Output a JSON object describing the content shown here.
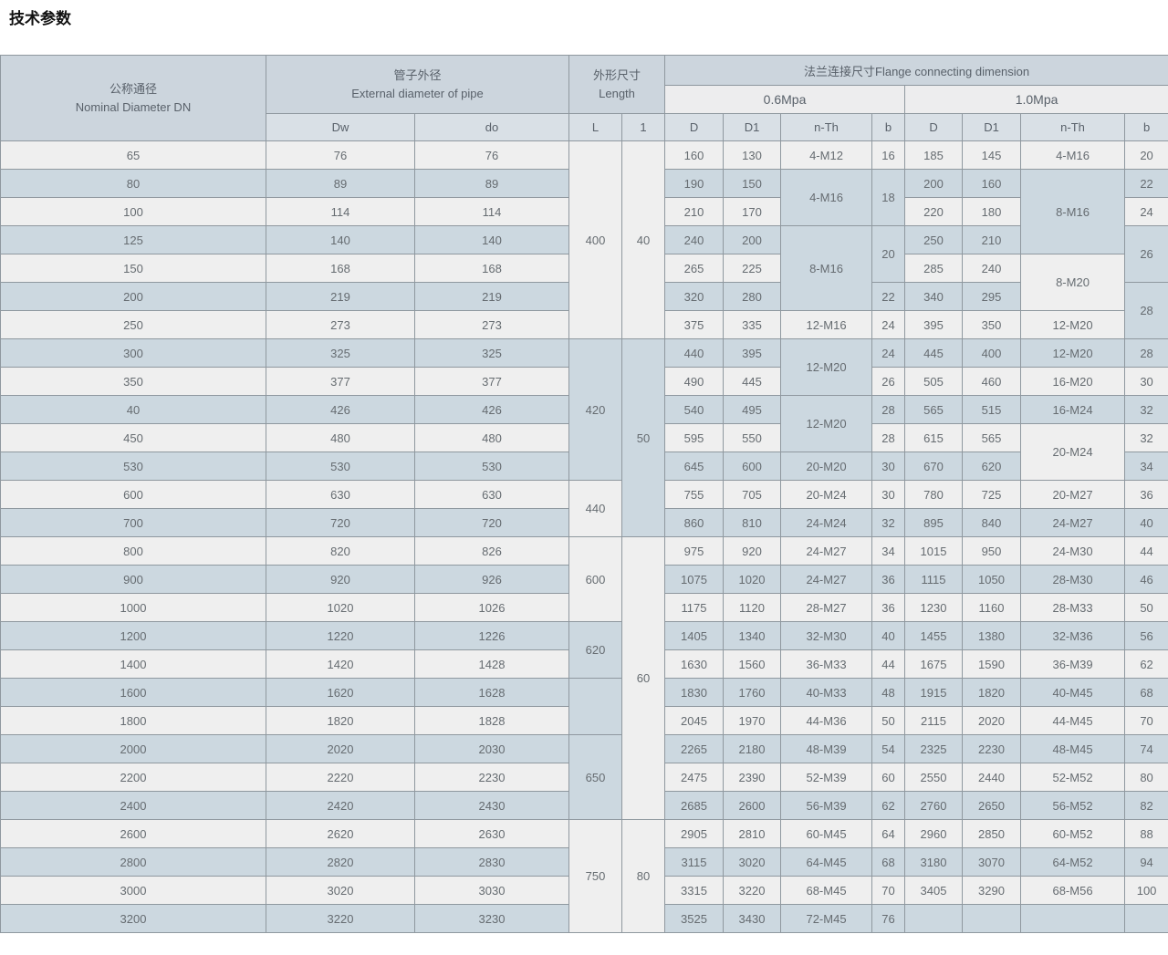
{
  "page_title": "技术参数",
  "colors": {
    "title": "#111111",
    "header_bg": "#ccd5dd",
    "mpa_row_bg": "#ededee",
    "subheader_bg": "#d9e0e6",
    "row_light": "#efefef",
    "row_dark": "#ccd8e0",
    "border": "#8f989f",
    "header_text": "#59616a",
    "cell_text": "#666c71"
  },
  "table": {
    "header": {
      "dn_zh": "公称通径",
      "dn_en": "Nominal Diameter DN",
      "pipe_zh": "管子外径",
      "pipe_en": "External diameter of pipe",
      "length_zh": "外形尺寸",
      "length_en": "Length",
      "flange": "法兰连接尺寸Flange connecting dimension",
      "mpa06": "0.6Mpa",
      "mpa10": "1.0Mpa",
      "sub": [
        "Dw",
        "do",
        "L",
        "1",
        "D",
        "D1",
        "n-Th",
        "b",
        "D",
        "D1",
        "n-Th",
        "b"
      ]
    },
    "columns": [
      "dn",
      "dw",
      "do",
      "L",
      "l",
      "D-06",
      "D1-06",
      "nTh-06",
      "b-06",
      "D-10",
      "D1-10",
      "nTh-10",
      "b-10"
    ],
    "rows": [
      {
        "cells": [
          {
            "v": "65"
          },
          {
            "v": "76"
          },
          {
            "v": "76"
          },
          {
            "v": "400",
            "rs": 7
          },
          {
            "v": "40",
            "rs": 7
          },
          {
            "v": "160"
          },
          {
            "v": "130"
          },
          {
            "v": "4-M12"
          },
          {
            "v": "16"
          },
          {
            "v": "185"
          },
          {
            "v": "145"
          },
          {
            "v": "4-M16"
          },
          {
            "v": "20"
          }
        ]
      },
      {
        "cells": [
          {
            "v": "80"
          },
          {
            "v": "89"
          },
          {
            "v": "89"
          },
          null,
          null,
          {
            "v": "190"
          },
          {
            "v": "150"
          },
          {
            "v": "4-M16",
            "rs": 2
          },
          {
            "v": "18",
            "rs": 2
          },
          {
            "v": "200"
          },
          {
            "v": "160"
          },
          {
            "v": "8-M16",
            "rs": 3
          },
          {
            "v": "22"
          }
        ]
      },
      {
        "cells": [
          {
            "v": "100"
          },
          {
            "v": "114"
          },
          {
            "v": "114"
          },
          null,
          null,
          {
            "v": "210"
          },
          {
            "v": "170"
          },
          null,
          null,
          {
            "v": "220"
          },
          {
            "v": "180"
          },
          null,
          {
            "v": "24"
          }
        ]
      },
      {
        "cells": [
          {
            "v": "125"
          },
          {
            "v": "140"
          },
          {
            "v": "140"
          },
          null,
          null,
          {
            "v": "240"
          },
          {
            "v": "200"
          },
          {
            "v": "8-M16",
            "rs": 3
          },
          {
            "v": "20",
            "rs": 2
          },
          {
            "v": "250"
          },
          {
            "v": "210"
          },
          null,
          {
            "v": "26",
            "rs": 2
          }
        ]
      },
      {
        "cells": [
          {
            "v": "150"
          },
          {
            "v": "168"
          },
          {
            "v": "168"
          },
          null,
          null,
          {
            "v": "265"
          },
          {
            "v": "225"
          },
          null,
          null,
          {
            "v": "285"
          },
          {
            "v": "240"
          },
          {
            "v": "8-M20",
            "rs": 2
          },
          null
        ]
      },
      {
        "cells": [
          {
            "v": "200"
          },
          {
            "v": "219"
          },
          {
            "v": "219"
          },
          null,
          null,
          {
            "v": "320"
          },
          {
            "v": "280"
          },
          null,
          {
            "v": "22"
          },
          {
            "v": "340"
          },
          {
            "v": "295"
          },
          null,
          {
            "v": "28",
            "rs": 2
          }
        ]
      },
      {
        "cells": [
          {
            "v": "250"
          },
          {
            "v": "273"
          },
          {
            "v": "273"
          },
          null,
          null,
          {
            "v": "375"
          },
          {
            "v": "335"
          },
          {
            "v": "12-M16"
          },
          {
            "v": "24"
          },
          {
            "v": "395"
          },
          {
            "v": "350"
          },
          {
            "v": "12-M20"
          },
          null
        ]
      },
      {
        "cells": [
          {
            "v": "300"
          },
          {
            "v": "325"
          },
          {
            "v": "325"
          },
          {
            "v": "420",
            "rs": 5
          },
          {
            "v": "50",
            "rs": 7
          },
          {
            "v": "440"
          },
          {
            "v": "395"
          },
          {
            "v": "12-M20",
            "rs": 2
          },
          {
            "v": "24"
          },
          {
            "v": "445"
          },
          {
            "v": "400"
          },
          {
            "v": "12-M20"
          },
          {
            "v": "28"
          }
        ]
      },
      {
        "cells": [
          {
            "v": "350"
          },
          {
            "v": "377"
          },
          {
            "v": "377"
          },
          null,
          null,
          {
            "v": "490"
          },
          {
            "v": "445"
          },
          null,
          {
            "v": "26"
          },
          {
            "v": "505"
          },
          {
            "v": "460"
          },
          {
            "v": "16-M20"
          },
          {
            "v": "30"
          }
        ]
      },
      {
        "cells": [
          {
            "v": "40"
          },
          {
            "v": "426"
          },
          {
            "v": "426"
          },
          null,
          null,
          {
            "v": "540"
          },
          {
            "v": "495"
          },
          {
            "v": "12-M20",
            "rs": 2
          },
          {
            "v": "28"
          },
          {
            "v": "565"
          },
          {
            "v": "515"
          },
          {
            "v": "16-M24"
          },
          {
            "v": "32"
          }
        ]
      },
      {
        "cells": [
          {
            "v": "450"
          },
          {
            "v": "480"
          },
          {
            "v": "480"
          },
          null,
          null,
          {
            "v": "595"
          },
          {
            "v": "550"
          },
          null,
          {
            "v": "28"
          },
          {
            "v": "615"
          },
          {
            "v": "565"
          },
          {
            "v": "20-M24",
            "rs": 2
          },
          {
            "v": "32"
          }
        ]
      },
      {
        "cells": [
          {
            "v": "530"
          },
          {
            "v": "530"
          },
          {
            "v": "530"
          },
          null,
          null,
          {
            "v": "645"
          },
          {
            "v": "600"
          },
          {
            "v": "20-M20"
          },
          {
            "v": "30"
          },
          {
            "v": "670"
          },
          {
            "v": "620"
          },
          null,
          {
            "v": "34"
          }
        ]
      },
      {
        "cells": [
          {
            "v": "600"
          },
          {
            "v": "630"
          },
          {
            "v": "630"
          },
          {
            "v": "440",
            "rs": 2
          },
          null,
          {
            "v": "755"
          },
          {
            "v": "705"
          },
          {
            "v": "20-M24"
          },
          {
            "v": "30"
          },
          {
            "v": "780"
          },
          {
            "v": "725"
          },
          {
            "v": "20-M27"
          },
          {
            "v": "36"
          }
        ]
      },
      {
        "cells": [
          {
            "v": "700"
          },
          {
            "v": "720"
          },
          {
            "v": "720"
          },
          null,
          null,
          {
            "v": "860"
          },
          {
            "v": "810"
          },
          {
            "v": "24-M24"
          },
          {
            "v": "32"
          },
          {
            "v": "895"
          },
          {
            "v": "840"
          },
          {
            "v": "24-M27"
          },
          {
            "v": "40"
          }
        ]
      },
      {
        "cells": [
          {
            "v": "800"
          },
          {
            "v": "820"
          },
          {
            "v": "826"
          },
          {
            "v": "600",
            "rs": 3
          },
          {
            "v": "60",
            "rs": 10
          },
          {
            "v": "975"
          },
          {
            "v": "920"
          },
          {
            "v": "24-M27"
          },
          {
            "v": "34"
          },
          {
            "v": "1015"
          },
          {
            "v": "950"
          },
          {
            "v": "24-M30"
          },
          {
            "v": "44"
          }
        ]
      },
      {
        "cells": [
          {
            "v": "900"
          },
          {
            "v": "920"
          },
          {
            "v": "926"
          },
          null,
          null,
          {
            "v": "1075"
          },
          {
            "v": "1020"
          },
          {
            "v": "24-M27"
          },
          {
            "v": "36"
          },
          {
            "v": "1115"
          },
          {
            "v": "1050"
          },
          {
            "v": "28-M30"
          },
          {
            "v": "46"
          }
        ]
      },
      {
        "cells": [
          {
            "v": "1000"
          },
          {
            "v": "1020"
          },
          {
            "v": "1026"
          },
          null,
          null,
          {
            "v": "1175"
          },
          {
            "v": "1120"
          },
          {
            "v": "28-M27"
          },
          {
            "v": "36"
          },
          {
            "v": "1230"
          },
          {
            "v": "1160"
          },
          {
            "v": "28-M33"
          },
          {
            "v": "50"
          }
        ]
      },
      {
        "cells": [
          {
            "v": "1200"
          },
          {
            "v": "1220"
          },
          {
            "v": "1226"
          },
          {
            "v": "620",
            "rs": 2
          },
          null,
          {
            "v": "1405"
          },
          {
            "v": "1340"
          },
          {
            "v": "32-M30"
          },
          {
            "v": "40"
          },
          {
            "v": "1455"
          },
          {
            "v": "1380"
          },
          {
            "v": "32-M36"
          },
          {
            "v": "56"
          }
        ]
      },
      {
        "cells": [
          {
            "v": "1400"
          },
          {
            "v": "1420"
          },
          {
            "v": "1428"
          },
          null,
          null,
          {
            "v": "1630"
          },
          {
            "v": "1560"
          },
          {
            "v": "36-M33"
          },
          {
            "v": "44"
          },
          {
            "v": "1675"
          },
          {
            "v": "1590"
          },
          {
            "v": "36-M39"
          },
          {
            "v": "62"
          }
        ]
      },
      {
        "cells": [
          {
            "v": "1600"
          },
          {
            "v": "1620"
          },
          {
            "v": "1628"
          },
          {
            "v": "",
            "rs": 2
          },
          null,
          {
            "v": "1830"
          },
          {
            "v": "1760"
          },
          {
            "v": "40-M33"
          },
          {
            "v": "48"
          },
          {
            "v": "1915"
          },
          {
            "v": "1820"
          },
          {
            "v": "40-M45"
          },
          {
            "v": "68"
          }
        ]
      },
      {
        "cells": [
          {
            "v": "1800"
          },
          {
            "v": "1820"
          },
          {
            "v": "1828"
          },
          null,
          null,
          {
            "v": "2045"
          },
          {
            "v": "1970"
          },
          {
            "v": "44-M36"
          },
          {
            "v": "50"
          },
          {
            "v": "2115"
          },
          {
            "v": "2020"
          },
          {
            "v": "44-M45"
          },
          {
            "v": "70"
          }
        ]
      },
      {
        "cells": [
          {
            "v": "2000"
          },
          {
            "v": "2020"
          },
          {
            "v": "2030"
          },
          {
            "v": "650",
            "rs": 3
          },
          null,
          {
            "v": "2265"
          },
          {
            "v": "2180"
          },
          {
            "v": "48-M39"
          },
          {
            "v": "54"
          },
          {
            "v": "2325"
          },
          {
            "v": "2230"
          },
          {
            "v": "48-M45"
          },
          {
            "v": "74"
          }
        ]
      },
      {
        "cells": [
          {
            "v": "2200"
          },
          {
            "v": "2220"
          },
          {
            "v": "2230"
          },
          null,
          null,
          {
            "v": "2475"
          },
          {
            "v": "2390"
          },
          {
            "v": "52-M39"
          },
          {
            "v": "60"
          },
          {
            "v": "2550"
          },
          {
            "v": "2440"
          },
          {
            "v": "52-M52"
          },
          {
            "v": "80"
          }
        ]
      },
      {
        "cells": [
          {
            "v": "2400"
          },
          {
            "v": "2420"
          },
          {
            "v": "2430"
          },
          null,
          null,
          {
            "v": "2685"
          },
          {
            "v": "2600"
          },
          {
            "v": "56-M39"
          },
          {
            "v": "62"
          },
          {
            "v": "2760"
          },
          {
            "v": "2650"
          },
          {
            "v": "56-M52"
          },
          {
            "v": "82"
          }
        ]
      },
      {
        "cells": [
          {
            "v": "2600"
          },
          {
            "v": "2620"
          },
          {
            "v": "2630"
          },
          {
            "v": "750",
            "rs": 4
          },
          {
            "v": "80",
            "rs": 4
          },
          {
            "v": "2905"
          },
          {
            "v": "2810"
          },
          {
            "v": "60-M45"
          },
          {
            "v": "64"
          },
          {
            "v": "2960"
          },
          {
            "v": "2850"
          },
          {
            "v": "60-M52"
          },
          {
            "v": "88"
          }
        ]
      },
      {
        "cells": [
          {
            "v": "2800"
          },
          {
            "v": "2820"
          },
          {
            "v": "2830"
          },
          null,
          null,
          {
            "v": "3115"
          },
          {
            "v": "3020"
          },
          {
            "v": "64-M45"
          },
          {
            "v": "68"
          },
          {
            "v": "3180"
          },
          {
            "v": "3070"
          },
          {
            "v": "64-M52"
          },
          {
            "v": "94"
          }
        ]
      },
      {
        "cells": [
          {
            "v": "3000"
          },
          {
            "v": "3020"
          },
          {
            "v": "3030"
          },
          null,
          null,
          {
            "v": "3315"
          },
          {
            "v": "3220"
          },
          {
            "v": "68-M45"
          },
          {
            "v": "70"
          },
          {
            "v": "3405"
          },
          {
            "v": "3290"
          },
          {
            "v": "68-M56"
          },
          {
            "v": "100"
          }
        ]
      },
      {
        "cells": [
          {
            "v": "3200"
          },
          {
            "v": "3220"
          },
          {
            "v": "3230"
          },
          null,
          null,
          {
            "v": "3525"
          },
          {
            "v": "3430"
          },
          {
            "v": "72-M45"
          },
          {
            "v": "76"
          },
          {
            "v": ""
          },
          {
            "v": ""
          },
          {
            "v": ""
          },
          {
            "v": ""
          }
        ]
      }
    ]
  }
}
